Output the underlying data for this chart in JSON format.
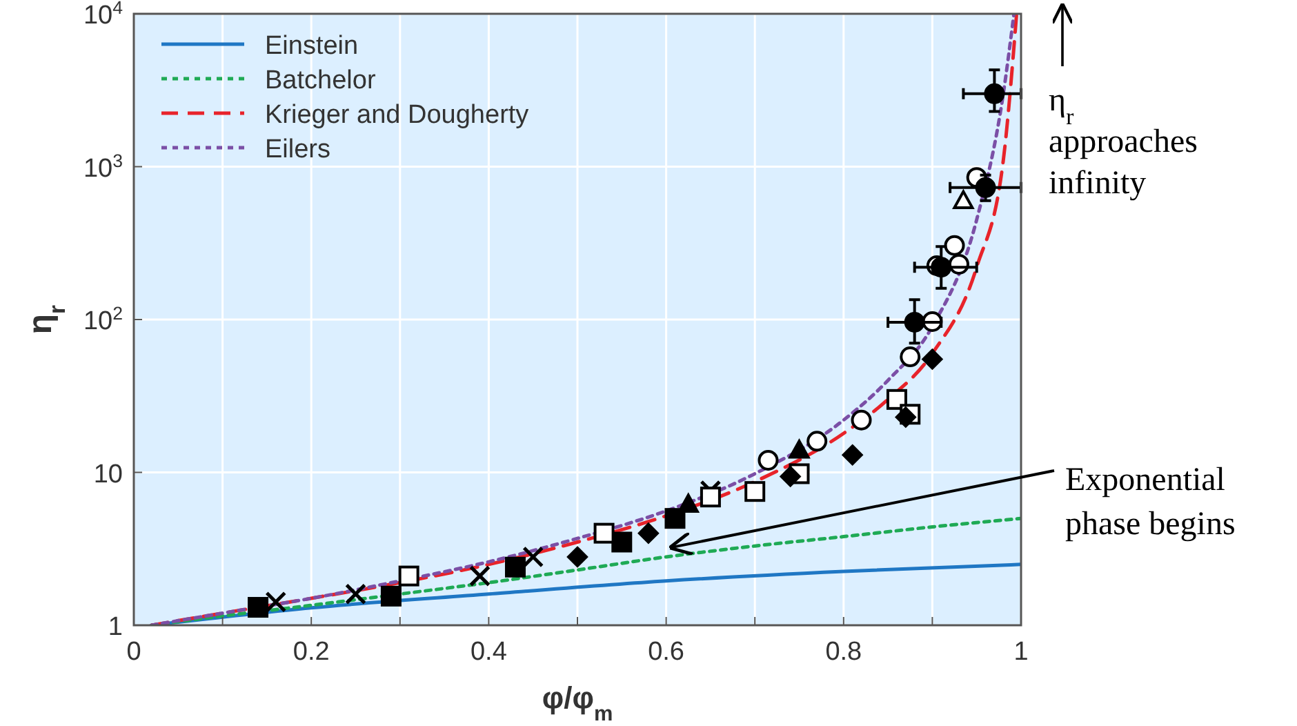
{
  "chart_data": {
    "type": "line",
    "xlabel": "φ/φ$_{m}$",
    "ylabel": "η$_{r}$",
    "log": "y",
    "xlim": [
      0,
      1
    ],
    "ylim": [
      1,
      10000
    ],
    "xticks": [
      0,
      {
        "value": 0.1,
        "label": null
      },
      0.2,
      {
        "value": 0.3,
        "label": null
      },
      0.4,
      {
        "value": 0.5,
        "label": null
      },
      0.6,
      {
        "value": 0.7,
        "label": null
      },
      0.8,
      {
        "value": 0.9,
        "label": null
      },
      1
    ],
    "yticks": [
      1,
      10,
      {
        "value": 100,
        "label": "10$^{2}$"
      },
      {
        "value": 1000,
        "label": "10$^{3}$"
      },
      {
        "value": 10000,
        "label": "10$^{4}$"
      }
    ],
    "grid": true,
    "legend": "top left",
    "marker": "none",
    "series": [
      {
        "name": "Einstein",
        "color": "#1f77c4",
        "line_style": "solid",
        "x": [
          0.02,
          0.2,
          0.4,
          0.6,
          0.8,
          1.0
        ],
        "values": [
          1.0,
          1.3,
          1.6,
          1.95,
          2.25,
          2.5
        ]
      },
      {
        "name": "Batchelor",
        "color": "#1faa55",
        "line_style": "dotted",
        "x": [
          0.02,
          0.1,
          0.2,
          0.3,
          0.4,
          0.5,
          0.6,
          0.7,
          0.8,
          0.9,
          1.0
        ],
        "values": [
          1.0,
          1.15,
          1.35,
          1.6,
          1.9,
          2.3,
          2.8,
          3.3,
          3.8,
          4.4,
          5.0
        ]
      },
      {
        "name": "Krieger and Dougherty",
        "color": "#e8232a",
        "line_style": "dashed",
        "x": [
          0.02,
          0.1,
          0.2,
          0.3,
          0.4,
          0.5,
          0.6,
          0.7,
          0.8,
          0.85,
          0.9,
          0.95,
          0.98,
          0.995
        ],
        "values": [
          1.0,
          1.2,
          1.5,
          1.9,
          2.5,
          3.5,
          5.2,
          8.7,
          18,
          30,
          60,
          220,
          1100,
          10000
        ]
      },
      {
        "name": "Eilers",
        "color": "#7b4fa6",
        "line_style": "dotted",
        "x": [
          0.02,
          0.1,
          0.2,
          0.3,
          0.4,
          0.5,
          0.6,
          0.7,
          0.8,
          0.85,
          0.9,
          0.95,
          0.98,
          0.992
        ],
        "values": [
          1.0,
          1.2,
          1.5,
          1.95,
          2.6,
          3.7,
          5.6,
          9.8,
          22,
          40,
          90,
          450,
          3000,
          10000
        ]
      },
      {
        "type": "scatter",
        "color": "#000000",
        "marker": "square",
        "x": [
          0.14,
          0.29,
          0.43,
          0.55,
          0.61
        ],
        "values": [
          1.31,
          1.55,
          2.4,
          3.5,
          5.0
        ]
      },
      {
        "type": "scatter",
        "color": "#000000",
        "marker": "cross",
        "x": [
          0.16,
          0.25,
          0.39,
          0.45,
          0.65
        ],
        "values": [
          1.42,
          1.6,
          2.1,
          2.8,
          7.6
        ]
      },
      {
        "type": "scatter",
        "color": "#ffffff",
        "marker": "square",
        "x": [
          0.31,
          0.53,
          0.65,
          0.7,
          0.75,
          0.86,
          0.875
        ],
        "values": [
          2.1,
          4.0,
          6.9,
          7.5,
          9.8,
          30,
          24
        ]
      },
      {
        "type": "scatter",
        "color": "#000000",
        "marker": "diamond",
        "x": [
          0.5,
          0.58,
          0.74,
          0.81,
          0.87,
          0.9
        ],
        "values": [
          2.8,
          4.0,
          9.4,
          13,
          23,
          55
        ]
      },
      {
        "type": "scatter",
        "color": "#ffffff",
        "marker": "circle",
        "x": [
          0.715,
          0.77,
          0.82,
          0.875,
          0.9,
          0.905,
          0.93,
          0.925,
          0.95
        ],
        "values": [
          12,
          16,
          22,
          57,
          97,
          225,
          230,
          305,
          850
        ]
      },
      {
        "type": "scatter",
        "color": "#000000",
        "marker": "triangle",
        "x": [
          0.625,
          0.75
        ],
        "values": [
          6.2,
          14
        ]
      },
      {
        "type": "scatter",
        "color": "#ffffff",
        "marker": "triangle",
        "x": [
          0.935
        ],
        "values": [
          600
        ]
      },
      {
        "type": "scatter",
        "color": "#000000",
        "marker": "circle",
        "x": [
          0.97,
          0.96,
          0.91,
          0.88
        ],
        "values": [
          3000,
          730,
          220,
          96
        ],
        "errors": [
          [
            2300,
            4300
          ],
          [
            600,
            880
          ],
          [
            160,
            300
          ],
          [
            70,
            135
          ]
        ],
        "xerrors": [
          [
            0.935,
            1.0
          ],
          [
            0.92,
            1.0
          ],
          [
            0.88,
            0.95
          ],
          [
            0.85,
            0.91
          ]
        ]
      }
    ],
    "annotations": [
      "η$_{r}$ approaches infinity",
      {
        "text": "Exponential phase begins",
        "x": 0.6,
        "y": 3.1
      }
    ]
  }
}
